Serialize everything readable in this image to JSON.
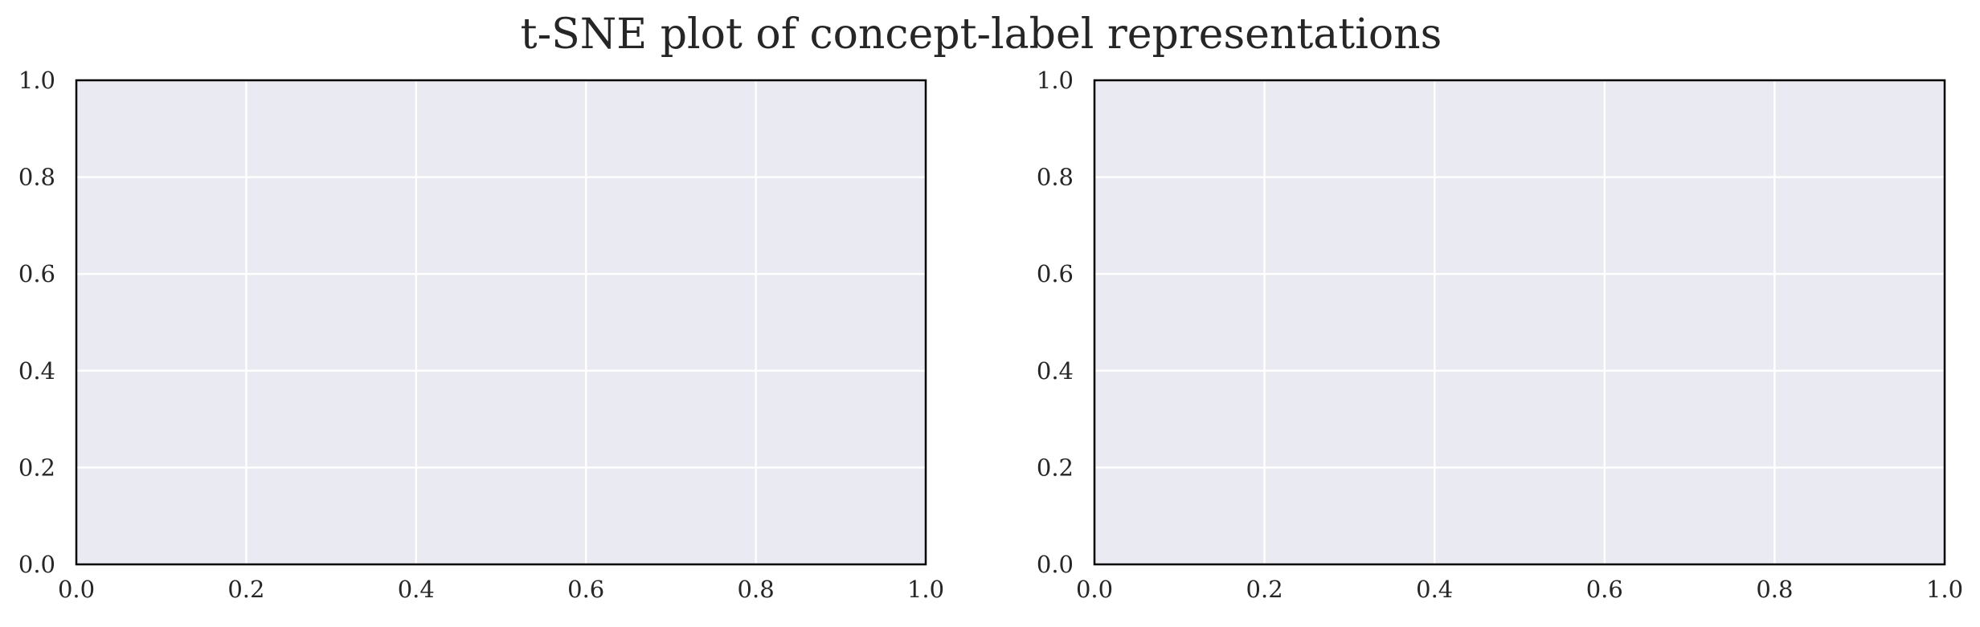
{
  "figure": {
    "title": "t-SNE plot of concept-label representations"
  },
  "colors": {
    "axes_background": "#EAEAF2",
    "grid": "#FFFFFF",
    "spine": "#000000",
    "text": "#262626"
  },
  "chart_data": [
    {
      "type": "scatter",
      "title": "",
      "xlabel": "",
      "ylabel": "",
      "xlim": [
        0.0,
        1.0
      ],
      "ylim": [
        0.0,
        1.0
      ],
      "x_ticks": [
        0.0,
        0.2,
        0.4,
        0.6,
        0.8,
        1.0
      ],
      "y_ticks": [
        0.0,
        0.2,
        0.4,
        0.6,
        0.8,
        1.0
      ],
      "x_tick_labels": [
        "0.0",
        "0.2",
        "0.4",
        "0.6",
        "0.8",
        "1.0"
      ],
      "y_tick_labels": [
        "0.0",
        "0.2",
        "0.4",
        "0.6",
        "0.8",
        "1.0"
      ],
      "grid": true,
      "legend": "none",
      "series": []
    },
    {
      "type": "scatter",
      "title": "",
      "xlabel": "",
      "ylabel": "",
      "xlim": [
        0.0,
        1.0
      ],
      "ylim": [
        0.0,
        1.0
      ],
      "x_ticks": [
        0.0,
        0.2,
        0.4,
        0.6,
        0.8,
        1.0
      ],
      "y_ticks": [
        0.0,
        0.2,
        0.4,
        0.6,
        0.8,
        1.0
      ],
      "x_tick_labels": [
        "0.0",
        "0.2",
        "0.4",
        "0.6",
        "0.8",
        "1.0"
      ],
      "y_tick_labels": [
        "0.0",
        "0.2",
        "0.4",
        "0.6",
        "0.8",
        "1.0"
      ],
      "grid": true,
      "legend": "none",
      "series": []
    }
  ]
}
